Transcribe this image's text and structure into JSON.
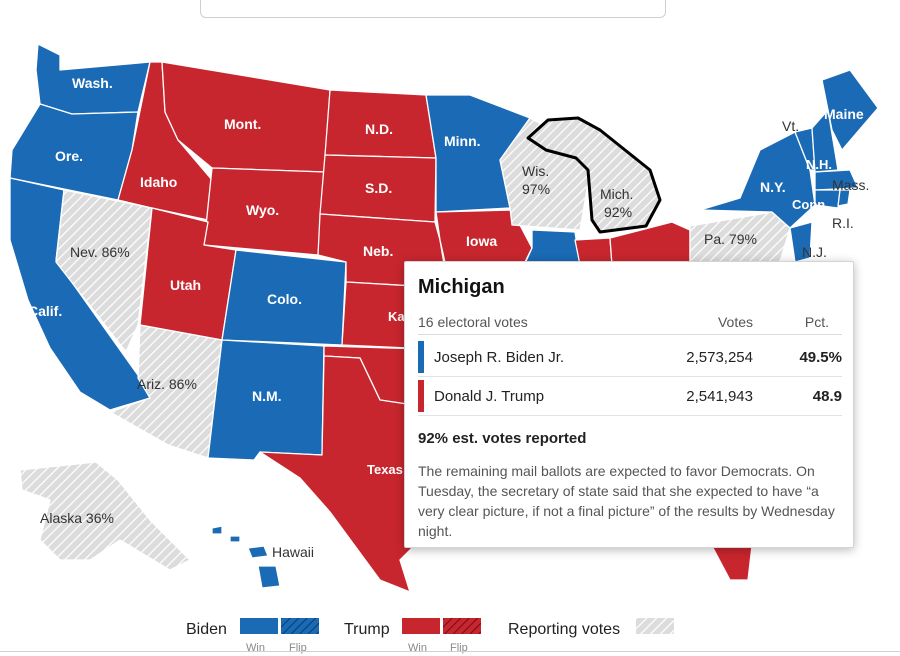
{
  "colors": {
    "biden": "#1a6ab5",
    "trump": "#c8262e",
    "reporting": "#dcdcdc",
    "reporting_hatch": "#ffffff"
  },
  "map": {
    "state_labels": {
      "wash": "Wash.",
      "ore": "Ore.",
      "calif": "Calif.",
      "nev": "Nev. 86%",
      "idaho": "Idaho",
      "mont": "Mont.",
      "wyo": "Wyo.",
      "utah": "Utah",
      "colo": "Colo.",
      "ariz": "Ariz. 86%",
      "nm": "N.M.",
      "nd": "N.D.",
      "sd": "S.D.",
      "neb": "Neb.",
      "kan": "Ka",
      "texas": "Texas",
      "minn": "Minn.",
      "iowa": "Iowa",
      "wis_name": "Wis.",
      "wis_pct": "97%",
      "mich_name": "Mich.",
      "mich_pct": "92%",
      "pa": "Pa. 79%",
      "ny": "N.Y.",
      "vt": "Vt.",
      "nh": "N.H.",
      "maine": "Maine",
      "mass": "Mass.",
      "conn": "Conn.",
      "ri": "R.I.",
      "nj": "N.J.",
      "alaska": "Alaska 36%",
      "hawaii": "Hawaii"
    }
  },
  "tooltip": {
    "state": "Michigan",
    "electoral_votes": "16 electoral votes",
    "votes_header": "Votes",
    "pct_header": "Pct.",
    "candidates": [
      {
        "name": "Joseph R. Biden Jr.",
        "votes": "2,573,254",
        "pct": "49.5%",
        "party": "biden"
      },
      {
        "name": "Donald J. Trump",
        "votes": "2,541,943",
        "pct": "48.9",
        "party": "trump"
      }
    ],
    "reported": "92% est. votes reported",
    "note": "The remaining mail ballots are expected to favor Democrats. On Tuesday, the secretary of state said that she expected to have “a very clear picture, if not a final picture” of the results by Wednesday night."
  },
  "legend": {
    "biden_label": "Biden",
    "trump_label": "Trump",
    "reporting_label": "Reporting votes",
    "win_label": "Win",
    "flip_label": "Flip"
  }
}
